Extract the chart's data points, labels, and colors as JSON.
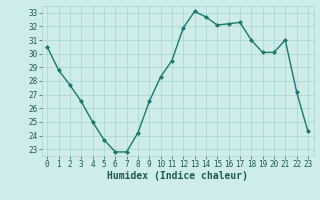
{
  "x": [
    0,
    1,
    2,
    3,
    4,
    5,
    6,
    7,
    8,
    9,
    10,
    11,
    12,
    13,
    14,
    15,
    16,
    17,
    18,
    19,
    20,
    21,
    22,
    23
  ],
  "y": [
    30.5,
    28.8,
    27.7,
    26.5,
    25.0,
    23.7,
    22.8,
    22.8,
    24.2,
    26.5,
    28.3,
    29.5,
    31.9,
    33.1,
    32.7,
    32.1,
    32.2,
    32.3,
    31.0,
    30.1,
    30.1,
    31.0,
    27.2,
    24.3
  ],
  "line_color": "#1a7a6e",
  "marker": "D",
  "marker_size": 2.0,
  "bg_color": "#cdecea",
  "grid_color": "#aad4d0",
  "xlabel": "Humidex (Indice chaleur)",
  "ylim": [
    22.5,
    33.5
  ],
  "xlim": [
    -0.5,
    23.5
  ],
  "yticks": [
    23,
    24,
    25,
    26,
    27,
    28,
    29,
    30,
    31,
    32,
    33
  ],
  "xticks": [
    0,
    1,
    2,
    3,
    4,
    5,
    6,
    7,
    8,
    9,
    10,
    11,
    12,
    13,
    14,
    15,
    16,
    17,
    18,
    19,
    20,
    21,
    22,
    23
  ],
  "tick_fontsize": 5.5,
  "xlabel_fontsize": 7.0,
  "linewidth": 1.0
}
